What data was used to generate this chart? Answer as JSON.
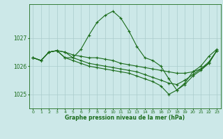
{
  "title": "Graphe pression niveau de la mer (hPa)",
  "bg_color": "#cce8e8",
  "grid_color": "#aacccc",
  "line_color": "#1a6b1a",
  "xlim": [
    -0.5,
    23.5
  ],
  "ylim": [
    1024.5,
    1028.2
  ],
  "yticks": [
    1025,
    1026,
    1027
  ],
  "xticks": [
    0,
    1,
    2,
    3,
    4,
    5,
    6,
    7,
    8,
    9,
    10,
    11,
    12,
    13,
    14,
    15,
    16,
    17,
    18,
    19,
    20,
    21,
    22,
    23
  ],
  "series": [
    [
      1026.3,
      1026.2,
      1026.5,
      1026.55,
      1026.3,
      1026.3,
      1026.6,
      1027.1,
      1027.55,
      1027.8,
      1027.95,
      1027.7,
      1027.25,
      1026.7,
      1026.3,
      1026.2,
      1026.0,
      1025.55,
      1025.15,
      1025.4,
      1025.8,
      1026.0,
      1026.35,
      1026.6
    ],
    [
      1026.3,
      1026.2,
      1026.5,
      1026.55,
      1026.5,
      1026.4,
      1026.35,
      1026.3,
      1026.3,
      1026.25,
      1026.2,
      1026.1,
      1026.05,
      1026.0,
      1025.95,
      1025.9,
      1025.85,
      1025.8,
      1025.75,
      1025.75,
      1025.8,
      1025.9,
      1026.1,
      1026.55
    ],
    [
      1026.3,
      1026.2,
      1026.5,
      1026.55,
      1026.5,
      1026.3,
      1026.2,
      1026.1,
      1026.05,
      1026.0,
      1025.95,
      1025.9,
      1025.85,
      1025.8,
      1025.7,
      1025.6,
      1025.5,
      1025.4,
      1025.35,
      1025.5,
      1025.7,
      1025.9,
      1026.15,
      1026.55
    ],
    [
      1026.3,
      1026.2,
      1026.5,
      1026.55,
      1026.3,
      1026.2,
      1026.1,
      1026.0,
      1025.95,
      1025.9,
      1025.85,
      1025.8,
      1025.75,
      1025.65,
      1025.55,
      1025.45,
      1025.3,
      1025.0,
      1025.15,
      1025.35,
      1025.65,
      1025.85,
      1026.1,
      1026.55
    ]
  ]
}
